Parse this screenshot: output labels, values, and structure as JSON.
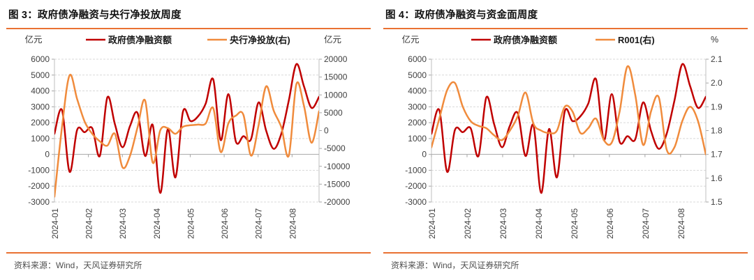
{
  "panels": [
    {
      "title": "图 3：政府债净融资与央行净投放周度",
      "source": "资料来源：Wind，天风证券研究所"
    },
    {
      "title": "图 4：政府债净融资与资金面周度",
      "source": "资料来源：Wind，天风证券研究所"
    }
  ],
  "chart_data": [
    {
      "type": "line",
      "title": "图 3：政府债净融资与央行净投放周度",
      "x_tick_labels": [
        "2024-01",
        "2024-02",
        "2024-03",
        "2024-04",
        "2024-05",
        "2024-06",
        "2024-07",
        "2024-08"
      ],
      "x_tick_positions": [
        0,
        4.49,
        8.98,
        13.47,
        17.96,
        22.45,
        26.94,
        31.43
      ],
      "n_points": 36,
      "left_axis": {
        "unit": "亿元",
        "min": -3000,
        "max": 6000,
        "tick_labels": [
          "6000",
          "5000",
          "4000",
          "3000",
          "2000",
          "1000",
          "0",
          "-1000",
          "-2000",
          "-3000"
        ]
      },
      "right_axis": {
        "unit": "亿元",
        "min": -20000,
        "max": 20000,
        "tick_labels": [
          "20000",
          "15000",
          "10000",
          "5000",
          "0",
          "-5000",
          "-10000",
          "-15000",
          "-20000"
        ]
      },
      "grid": true,
      "legend_position": "top",
      "series": [
        {
          "name": "政府债净融资额",
          "color": "#C00000",
          "axis": "left",
          "values": [
            1300,
            2800,
            -1100,
            1550,
            1400,
            1650,
            -100,
            3600,
            1900,
            450,
            1800,
            2600,
            -100,
            1850,
            -2430,
            1600,
            -1450,
            2700,
            2100,
            2400,
            3200,
            4730,
            900,
            3800,
            800,
            1150,
            950,
            3280,
            1500,
            350,
            1300,
            3400,
            5690,
            4300,
            2930,
            3630
          ]
        },
        {
          "name": "央行净投放(右)",
          "color": "#F08B3C",
          "axis": "right",
          "values": [
            -18500,
            1000,
            15500,
            8800,
            2500,
            -900,
            -3000,
            -4200,
            -900,
            -10300,
            -7000,
            1000,
            8400,
            -9000,
            100,
            690,
            -890,
            1080,
            1500,
            1670,
            2000,
            6300,
            -6000,
            2000,
            4200,
            4400,
            -7000,
            1500,
            12400,
            5600,
            1000,
            -7000,
            13000,
            7000,
            -3400,
            5400
          ]
        }
      ]
    },
    {
      "type": "line",
      "title": "图 4：政府债净融资与资金面周度",
      "x_tick_labels": [
        "2024-01",
        "2024-02",
        "2024-03",
        "2024-04",
        "2024-05",
        "2024-06",
        "2024-07",
        "2024-08"
      ],
      "x_tick_positions": [
        0,
        4.54,
        9.08,
        13.62,
        18.16,
        22.7,
        27.24,
        31.78
      ],
      "n_points": 36,
      "left_axis": {
        "unit": "亿元",
        "min": -3000,
        "max": 6000,
        "tick_labels": [
          "6000",
          "5000",
          "4000",
          "3000",
          "2000",
          "1000",
          "0",
          "-1000",
          "-2000",
          "-3000"
        ]
      },
      "right_axis": {
        "unit": "%",
        "min": 1.5,
        "max": 2.1,
        "tick_labels": [
          "2.1",
          "2.0",
          "1.9",
          "1.8",
          "1.7",
          "1.6",
          "1.5"
        ]
      },
      "grid": true,
      "legend_position": "top",
      "series": [
        {
          "name": "政府债净融资额",
          "color": "#C00000",
          "axis": "left",
          "values": [
            1300,
            2800,
            -1100,
            1550,
            1400,
            1650,
            -100,
            3600,
            1900,
            450,
            1800,
            2600,
            -100,
            1850,
            -2430,
            1600,
            -1450,
            2700,
            2100,
            2400,
            3200,
            4730,
            900,
            3800,
            800,
            1150,
            950,
            3280,
            1500,
            350,
            1300,
            3400,
            5690,
            4300,
            2930,
            3630
          ]
        },
        {
          "name": "R001(右)",
          "color": "#F08B3C",
          "axis": "right",
          "values": [
            1.73,
            1.85,
            1.97,
            2.0,
            1.9,
            1.84,
            1.82,
            1.81,
            1.78,
            1.76,
            1.8,
            1.86,
            1.96,
            1.83,
            1.8,
            1.79,
            1.8,
            1.9,
            1.88,
            1.79,
            1.81,
            1.85,
            1.76,
            1.75,
            1.88,
            2.07,
            1.95,
            1.74,
            1.88,
            1.94,
            1.72,
            1.73,
            1.84,
            1.9,
            1.84,
            1.7
          ]
        }
      ]
    }
  ]
}
